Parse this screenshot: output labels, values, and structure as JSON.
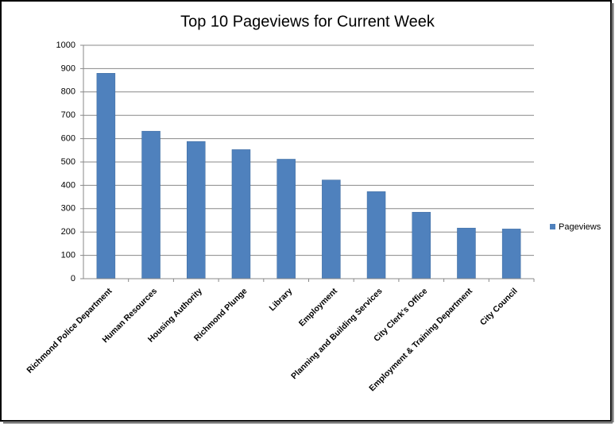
{
  "chart_data": {
    "type": "bar",
    "title": "Top 10 Pageviews for Current Week",
    "categories": [
      "Richmond Police Department",
      "Human Resources",
      "Housing Authority",
      "Richmond Plunge",
      "Library",
      "Employment",
      "Planning and Building Services",
      "City Clerk's Office",
      "Employment & Training Department",
      "City Council"
    ],
    "series": [
      {
        "name": "Pageviews",
        "color": "#4f81bd",
        "values": [
          880,
          632,
          588,
          553,
          512,
          423,
          373,
          285,
          217,
          213
        ]
      }
    ],
    "ylim": [
      0,
      1000
    ],
    "yticks": [
      0,
      100,
      200,
      300,
      400,
      500,
      600,
      700,
      800,
      900,
      1000
    ],
    "grid": true,
    "legend": "right"
  }
}
